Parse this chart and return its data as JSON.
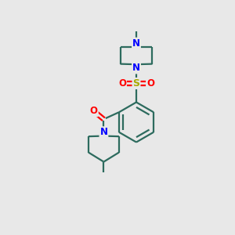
{
  "background_color": "#e8e8e8",
  "bond_color": "#2d6b5e",
  "N_color": "#0000ff",
  "O_color": "#ff0000",
  "S_color": "#aaaa00",
  "line_width": 1.6,
  "figsize": [
    3.0,
    3.0
  ],
  "dpi": 100,
  "xlim": [
    0,
    10
  ],
  "ylim": [
    0,
    10
  ]
}
